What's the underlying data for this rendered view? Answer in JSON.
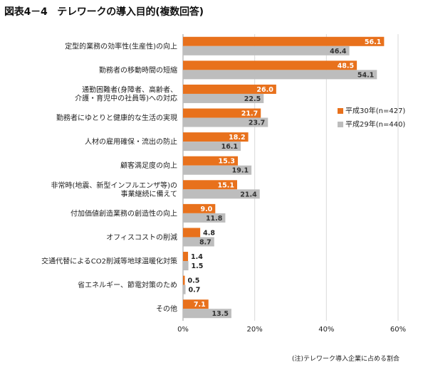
{
  "title": "図表4－4　テレワークの導入目的(複数回答)",
  "footnote": "(注)テレワーク導入企業に占める割合",
  "colors": {
    "accent": "#e8711c",
    "secondary": "#bdbdbd",
    "grid": "#d9d9d9"
  },
  "chart_data": {
    "type": "bar",
    "orientation": "horizontal",
    "categories": [
      [
        "定型的業務の効率性(生産性)の向上"
      ],
      [
        "勤務者の移動時間の短縮"
      ],
      [
        "通勤困難者(身障者、高齢者、",
        "介護・育児中の社員等)への対応"
      ],
      [
        "勤務者にゆとりと健康的な生活の実現"
      ],
      [
        "人材の雇用確保・流出の防止"
      ],
      [
        "顧客満足度の向上"
      ],
      [
        "非常時(地震、新型インフルエンザ等)の",
        "事業継続に備えて"
      ],
      [
        "付加価値創造業務の創造性の向上"
      ],
      [
        "オフィスコストの削減"
      ],
      [
        "交通代替によるCO2削減等地球温暖化対策"
      ],
      [
        "省エネルギー、節電対策のため"
      ],
      [
        "その他"
      ]
    ],
    "series": [
      {
        "name": "平成30年(n=427)",
        "color": "#e8711c",
        "values": [
          56.1,
          48.5,
          26.0,
          21.7,
          18.2,
          15.3,
          15.1,
          9.0,
          4.8,
          1.4,
          0.5,
          7.1
        ]
      },
      {
        "name": "平成29年(n=440)",
        "color": "#bdbdbd",
        "values": [
          46.4,
          54.1,
          22.5,
          23.7,
          16.1,
          19.1,
          21.4,
          11.8,
          8.7,
          1.5,
          0.7,
          13.5
        ]
      }
    ],
    "xlim": [
      0,
      60
    ],
    "xticks": [
      0,
      20,
      40,
      60
    ],
    "xtick_labels": [
      "0%",
      "20%",
      "40%",
      "60%"
    ],
    "value_labels": true,
    "grid": true,
    "legend": "right"
  }
}
